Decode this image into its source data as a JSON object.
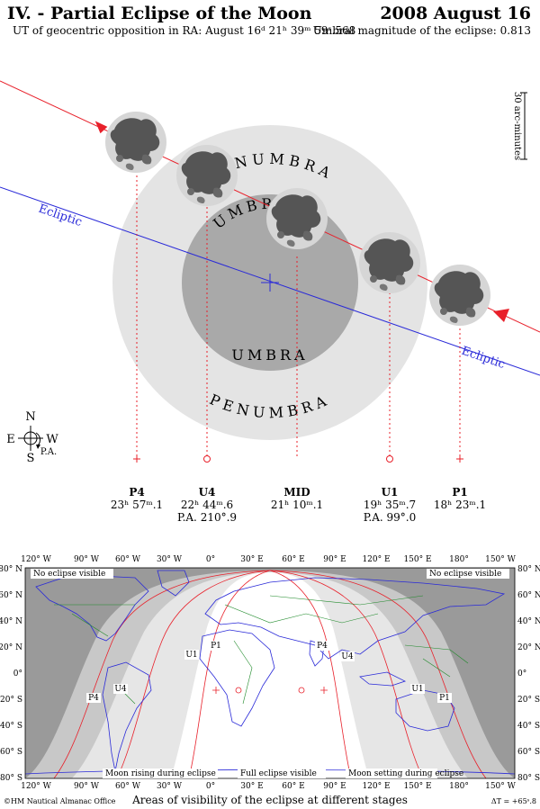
{
  "header": {
    "title_left": "IV. - Partial Eclipse of the Moon",
    "title_right": "2008 August 16",
    "subtitle_left": "UT of geocentric opposition in RA: August 16ᵈ 21ʰ 39ᵐ 59ˢ.568",
    "subtitle_right": "Umbral magnitude of the eclipse: 0.813"
  },
  "diagram": {
    "scale_label": "30 arc-minutes",
    "penumbra_label": "PENUMBRA",
    "umbra_label": "UMBRA",
    "ecliptic_label": "Ecliptic",
    "compass": {
      "north": "N",
      "south": "S",
      "east": "E",
      "west": "W",
      "pa": "P.A."
    }
  },
  "contacts": [
    {
      "name": "P4",
      "time": "23ʰ 57ᵐ.1",
      "pa": ""
    },
    {
      "name": "U4",
      "time": "22ʰ 44ᵐ.6",
      "pa": "P.A. 210°.9"
    },
    {
      "name": "MID",
      "time": "21ʰ 10ᵐ.1",
      "pa": ""
    },
    {
      "name": "U1",
      "time": "19ʰ 35ᵐ.7",
      "pa": "P.A. 99°.0"
    },
    {
      "name": "P1",
      "time": "18ʰ 23ᵐ.1",
      "pa": ""
    }
  ],
  "map": {
    "lon_labels": [
      "120° W",
      "90° W",
      "60° W",
      "30° W",
      "0°",
      "30° E",
      "60° E",
      "90° E",
      "120° E",
      "150° E",
      "180°",
      "150° W"
    ],
    "lat_labels": [
      "80° N",
      "60° N",
      "40° N",
      "20° N",
      "0°",
      "20° S",
      "40° S",
      "60° S",
      "80° S"
    ],
    "region_labels": {
      "no_eclipse_left": "No eclipse visible",
      "no_eclipse_right": "No eclipse visible",
      "rising": "Moon rising during eclipse",
      "full": "Full eclipse visible",
      "setting": "Moon setting during eclipse"
    },
    "curve_labels": [
      "P4",
      "U4",
      "U1",
      "P1",
      "P4",
      "U4",
      "U1",
      "P1"
    ],
    "caption": "Areas of visibility of the eclipse at different stages",
    "copyright": "©HM Nautical Almanac Office",
    "delta_t": "ΔT = +65ˢ.8"
  },
  "colors": {
    "penumbra": "#e4e4e4",
    "umbra": "#a9a9a9",
    "moon_path": "#e8202a",
    "ecliptic": "#2a2ad8",
    "map_dark": "#9a9a9a",
    "map_mid": "#c8c8c8",
    "map_light": "#e6e6e6",
    "coast": "#2a2ad8",
    "border": "#1f8a2a"
  }
}
